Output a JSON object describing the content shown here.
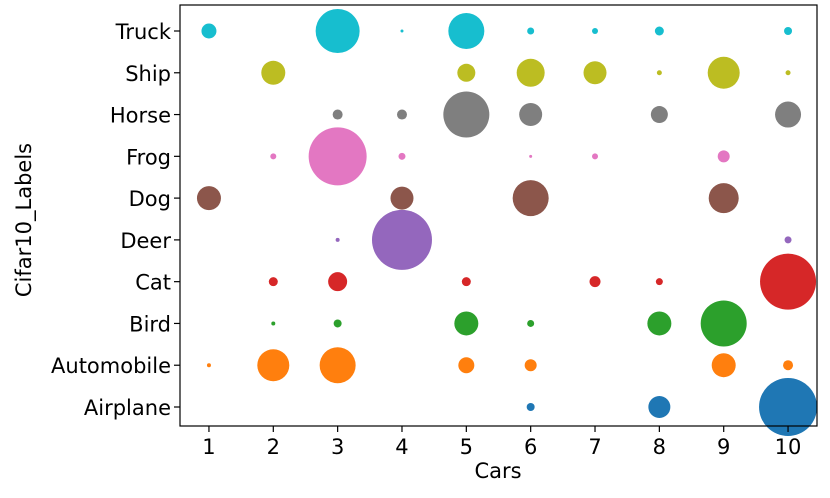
{
  "chart_data": {
    "type": "scatter",
    "title": "",
    "xlabel": "Cars",
    "ylabel": "Cifar10_Labels",
    "x_ticks": [
      "1",
      "2",
      "3",
      "4",
      "5",
      "6",
      "7",
      "8",
      "9",
      "10"
    ],
    "xlim": [
      0.55,
      10.45
    ],
    "categories": [
      "Airplane",
      "Automobile",
      "Bird",
      "Cat",
      "Deer",
      "Dog",
      "Frog",
      "Horse",
      "Ship",
      "Truck"
    ],
    "grid": false,
    "legend": "none",
    "series": [
      {
        "category": "Airplane",
        "color": "#1f77b4",
        "points": [
          [
            6,
            4
          ],
          [
            8,
            11
          ],
          [
            10,
            29
          ]
        ]
      },
      {
        "category": "Automobile",
        "color": "#ff7f0e",
        "points": [
          [
            1,
            2
          ],
          [
            2,
            16
          ],
          [
            3,
            18
          ],
          [
            5,
            8
          ],
          [
            6,
            6
          ],
          [
            9,
            12
          ],
          [
            10,
            5
          ]
        ]
      },
      {
        "category": "Bird",
        "color": "#2ca02c",
        "points": [
          [
            2,
            2
          ],
          [
            3,
            4
          ],
          [
            5,
            12
          ],
          [
            6,
            3.5
          ],
          [
            8,
            12
          ],
          [
            9,
            23
          ]
        ]
      },
      {
        "category": "Cat",
        "color": "#d62728",
        "points": [
          [
            2,
            4.5
          ],
          [
            3,
            9.5
          ],
          [
            5,
            4.5
          ],
          [
            7,
            5.5
          ],
          [
            8,
            3.5
          ],
          [
            10,
            28
          ]
        ]
      },
      {
        "category": "Deer",
        "color": "#9467bd",
        "points": [
          [
            3,
            2
          ],
          [
            4,
            30
          ],
          [
            10,
            3.5
          ]
        ]
      },
      {
        "category": "Dog",
        "color": "#8c564b",
        "points": [
          [
            1,
            12
          ],
          [
            4,
            11.5
          ],
          [
            6,
            18
          ],
          [
            9,
            15
          ]
        ]
      },
      {
        "category": "Frog",
        "color": "#e377c2",
        "points": [
          [
            2,
            3
          ],
          [
            3,
            29
          ],
          [
            4,
            3.5
          ],
          [
            6,
            1.5
          ],
          [
            7,
            3
          ],
          [
            9,
            6
          ]
        ]
      },
      {
        "category": "Horse",
        "color": "#7f7f7f",
        "points": [
          [
            3,
            5
          ],
          [
            4,
            5
          ],
          [
            5,
            23
          ],
          [
            6,
            11.5
          ],
          [
            8,
            8.5
          ],
          [
            10,
            13
          ]
        ]
      },
      {
        "category": "Ship",
        "color": "#bcbd22",
        "points": [
          [
            2,
            12
          ],
          [
            5,
            9
          ],
          [
            6,
            14
          ],
          [
            7,
            11.5
          ],
          [
            8,
            2.5
          ],
          [
            9,
            16
          ],
          [
            10,
            2.5
          ]
        ]
      },
      {
        "category": "Truck",
        "color": "#17becf",
        "points": [
          [
            1,
            7.5
          ],
          [
            3,
            22
          ],
          [
            4,
            1.5
          ],
          [
            5,
            18
          ],
          [
            6,
            3.5
          ],
          [
            7,
            3
          ],
          [
            8,
            4.5
          ],
          [
            10,
            4
          ]
        ]
      }
    ]
  }
}
